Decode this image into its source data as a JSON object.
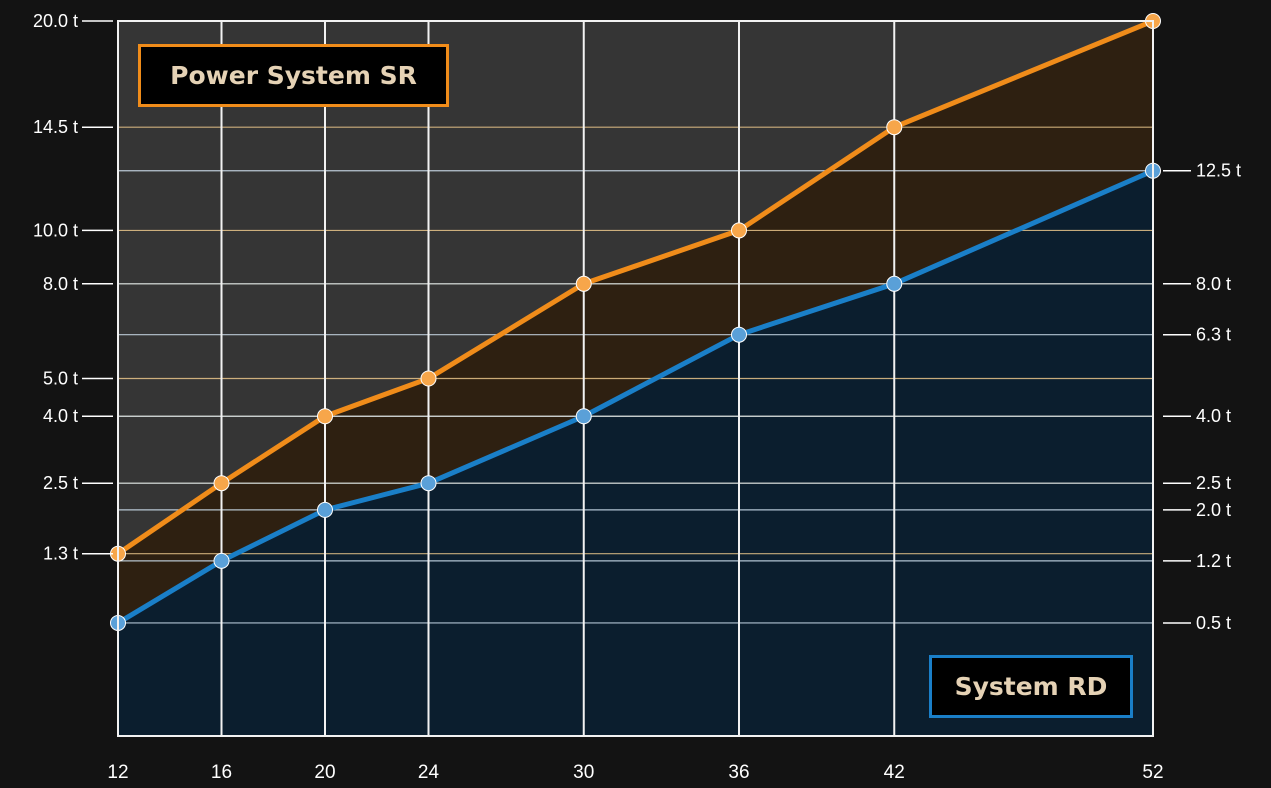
{
  "chart_data": {
    "type": "area",
    "x": [
      12,
      16,
      20,
      24,
      30,
      36,
      42,
      52
    ],
    "series": [
      {
        "name": "Power System SR",
        "values": [
          1.3,
          2.5,
          4.0,
          5.0,
          8.0,
          10.0,
          14.5,
          20.0
        ],
        "color": "#f08c1a",
        "axis": "left"
      },
      {
        "name": "System RD",
        "values": [
          0.5,
          1.2,
          2.0,
          2.5,
          4.0,
          6.3,
          8.0,
          12.5
        ],
        "color": "#1a7fc8",
        "axis": "right"
      }
    ],
    "y_scale": "sqrt",
    "ylim": [
      0,
      20
    ],
    "xticks": [
      "12",
      "16",
      "20",
      "24",
      "30",
      "36",
      "42",
      "52"
    ],
    "left_ticks": [
      {
        "value": 20,
        "label": "20.0 t"
      },
      {
        "value": 14.5,
        "label": "14.5 t"
      },
      {
        "value": 10,
        "label": "10.0 t"
      },
      {
        "value": 8,
        "label": "8.0 t"
      },
      {
        "value": 5,
        "label": "5.0 t"
      },
      {
        "value": 4,
        "label": "4.0 t"
      },
      {
        "value": 2.5,
        "label": "2.5 t"
      },
      {
        "value": 1.3,
        "label": "1.3 t"
      }
    ],
    "right_ticks": [
      {
        "value": 12.5,
        "label": "12.5 t"
      },
      {
        "value": 8,
        "label": "8.0 t"
      },
      {
        "value": 6.3,
        "label": "6.3 t"
      },
      {
        "value": 4,
        "label": "4.0 t"
      },
      {
        "value": 2.5,
        "label": "2.5 t"
      },
      {
        "value": 2.0,
        "label": "2.0 t"
      },
      {
        "value": 1.2,
        "label": "1.2 t"
      },
      {
        "value": 0.5,
        "label": "0.5 t"
      }
    ],
    "legend": [
      {
        "label": "Power System SR",
        "position": "top-left"
      },
      {
        "label": "System RD",
        "position": "bottom-right"
      }
    ],
    "grid": true,
    "colors": {
      "background": "#131313",
      "plot_background": "#353535",
      "orange_fill": "#2e2011",
      "blue_fill": "#0b1e2e",
      "vertical_grid": "#f2f2f2",
      "orange_grid": "#e8c48a",
      "blue_grid": "#cfe0ee",
      "tick_text": "#ffffff"
    }
  }
}
